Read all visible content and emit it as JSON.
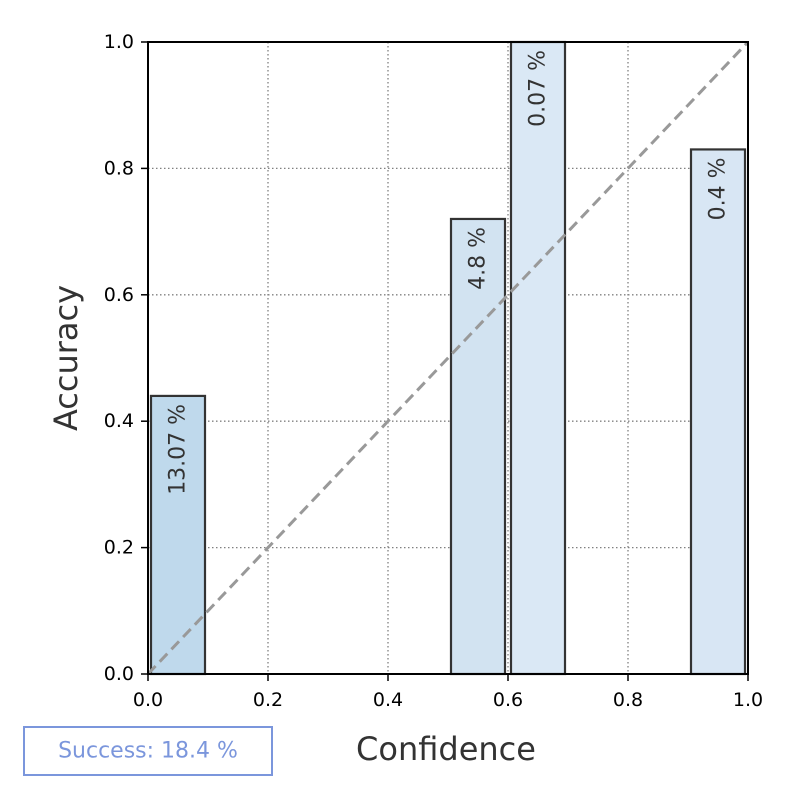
{
  "chart_data": {
    "type": "bar",
    "title": "",
    "xlabel": "Confidence",
    "ylabel": "Accuracy",
    "xlim": [
      0.0,
      1.0
    ],
    "ylim": [
      0.0,
      1.0
    ],
    "xticks": [
      "0.0",
      "0.2",
      "0.4",
      "0.6",
      "0.8",
      "1.0"
    ],
    "yticks": [
      "0.0",
      "0.2",
      "0.4",
      "0.6",
      "0.8",
      "1.0"
    ],
    "grid": true,
    "diagonal_reference": true,
    "bins": [
      {
        "x_start": 0.0,
        "x_end": 0.1,
        "accuracy": 0.44,
        "label": "13.07 %",
        "color": "#bfd9ec"
      },
      {
        "x_start": 0.5,
        "x_end": 0.6,
        "accuracy": 0.72,
        "label": "4.8 %",
        "color": "#d2e3f1"
      },
      {
        "x_start": 0.6,
        "x_end": 0.7,
        "accuracy": 1.0,
        "label": "0.07 %",
        "color": "#dae8f5"
      },
      {
        "x_start": 0.9,
        "x_end": 1.0,
        "accuracy": 0.83,
        "label": "0.4 %",
        "color": "#d8e6f4"
      }
    ],
    "colors": {
      "bar_edge": "#333333",
      "diagonal": "#999999",
      "grid": "#808080"
    }
  },
  "success_box": {
    "text": "Success: 18.4 %",
    "color": "#7b96dc"
  }
}
